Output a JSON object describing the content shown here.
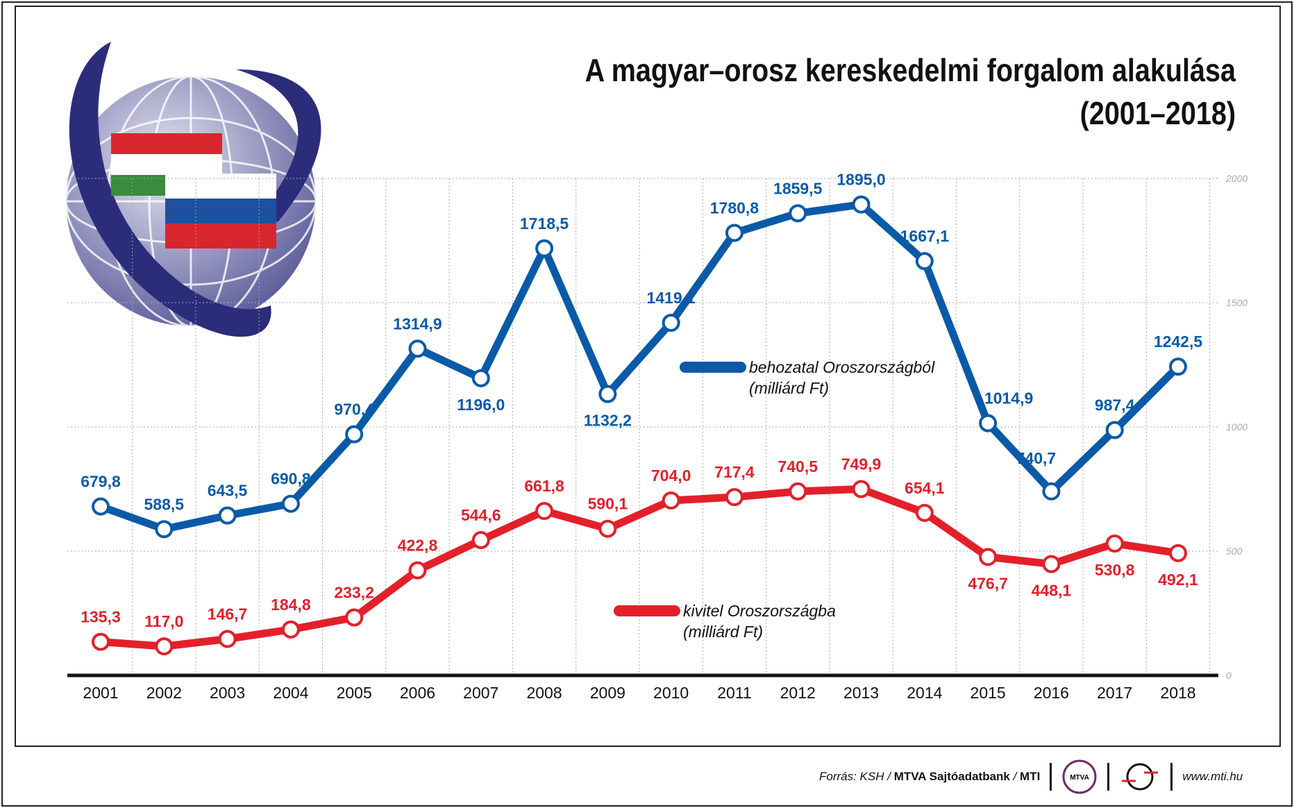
{
  "title_line1": "A magyar–orosz kereskedelmi forgalom alakulása",
  "title_line2": "(2001–2018)",
  "chart_data": {
    "type": "line",
    "categories": [
      "2001",
      "2002",
      "2003",
      "2004",
      "2005",
      "2006",
      "2007",
      "2008",
      "2009",
      "2010",
      "2011",
      "2012",
      "2013",
      "2014",
      "2015",
      "2016",
      "2017",
      "2018"
    ],
    "ylim": [
      0,
      2000
    ],
    "yticks": [
      0,
      500,
      1000,
      1500,
      2000
    ],
    "grid": true,
    "y_axis_side": "right",
    "series": [
      {
        "name": "behozatal Oroszországból",
        "unit": "(milliárd Ft)",
        "color": "#0a5aa8",
        "values": [
          679.8,
          588.5,
          643.5,
          690.8,
          970.4,
          1314.9,
          1196.0,
          1718.5,
          1132.2,
          1419.1,
          1780.8,
          1859.5,
          1895.0,
          1667.1,
          1014.9,
          740.7,
          987.4,
          1242.5
        ],
        "labels": [
          "679,8",
          "588,5",
          "643,5",
          "690,8",
          "970,4",
          "1314,9",
          "1196,0",
          "1718,5",
          "1132,2",
          "1419,1",
          "1780,8",
          "1859,5",
          "1895,0",
          "1667,1",
          "1014,9",
          "740,7",
          "987,4",
          "1242,5"
        ]
      },
      {
        "name": "kivitel Oroszországba",
        "unit": "(milliárd Ft)",
        "color": "#e3202a",
        "values": [
          135.3,
          117.0,
          146.7,
          184.8,
          233.2,
          422.8,
          544.6,
          661.8,
          590.1,
          704.0,
          717.4,
          740.5,
          749.9,
          654.1,
          476.7,
          448.1,
          530.8,
          492.1
        ],
        "labels": [
          "135,3",
          "117,0",
          "146,7",
          "184,8",
          "233,2",
          "422,8",
          "544,6",
          "661,8",
          "590,1",
          "704,0",
          "717,4",
          "740,5",
          "749,9",
          "654,1",
          "476,7",
          "448,1",
          "530,8",
          "492,1"
        ]
      }
    ]
  },
  "footer": {
    "source_prefix": "Forrás: KSH / ",
    "source_bold": "MTVA Sajtóadatbank",
    "source_sep": " / ",
    "source_mti": "MTI",
    "mtva_logo": "MTVA",
    "url": "www.mti.hu"
  }
}
